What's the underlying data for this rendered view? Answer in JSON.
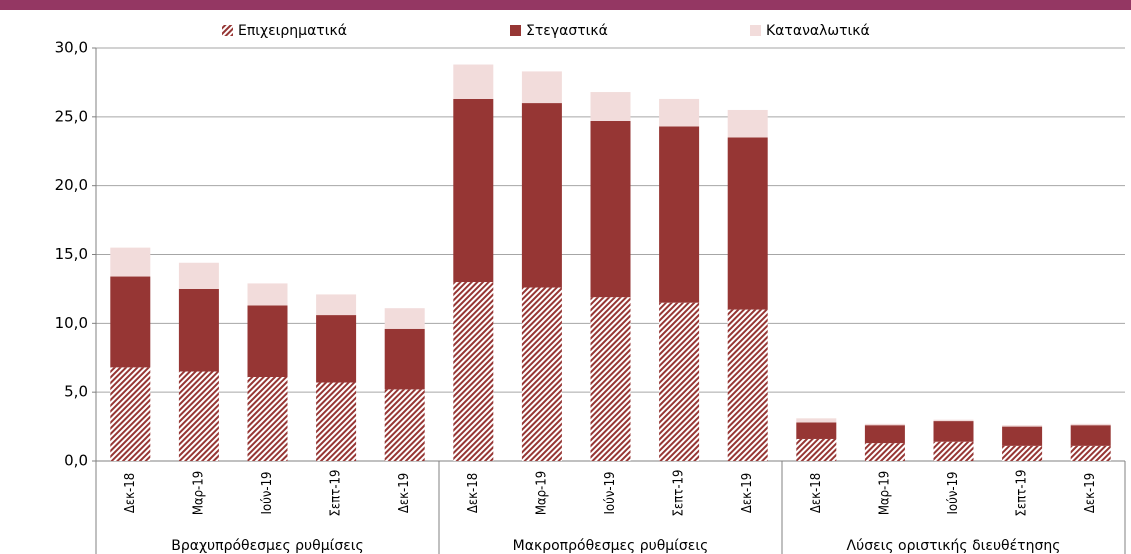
{
  "chart_data": {
    "type": "stacked_bar",
    "categories": [
      "Δεκ-18",
      "Μαρ-19",
      "Ιούν-19",
      "Σεπτ-19",
      "Δεκ-19",
      "Δεκ-18",
      "Μαρ-19",
      "Ιούν-19",
      "Σεπτ-19",
      "Δεκ-19",
      "Δεκ-18",
      "Μαρ-19",
      "Ιούν-19",
      "Σεπτ-19",
      "Δεκ-19"
    ],
    "groups": [
      "Βραχυπρόθεσμες ρυθμίσεις",
      "Μακροπρόθεσμες ρυθμίσεις",
      "Λύσεις οριστικής διευθέτησης"
    ],
    "series": [
      {
        "name": "Επιχειρηματικά",
        "color": "#963634",
        "pattern": "hatch",
        "values": [
          6.8,
          6.5,
          6.1,
          5.7,
          5.2,
          13.0,
          12.6,
          11.9,
          11.5,
          11.0,
          1.6,
          1.3,
          1.4,
          1.1,
          1.1
        ]
      },
      {
        "name": "Στεγαστικά",
        "color": "#963634",
        "values": [
          6.6,
          6.0,
          5.2,
          4.9,
          4.4,
          13.3,
          13.4,
          12.8,
          12.8,
          12.5,
          1.2,
          1.3,
          1.5,
          1.4,
          1.5
        ]
      },
      {
        "name": "Καταναλωτικά",
        "color": "#f2dcdb",
        "values": [
          2.1,
          1.9,
          1.6,
          1.5,
          1.5,
          2.5,
          2.3,
          2.1,
          2.0,
          2.0,
          0.3,
          0.1,
          0.1,
          0.1,
          0.1
        ]
      }
    ],
    "ylim": [
      0,
      30
    ],
    "yticks": [
      {
        "value": 0,
        "label": "0,0"
      },
      {
        "value": 5,
        "label": "5,0"
      },
      {
        "value": 10,
        "label": "10,0"
      },
      {
        "value": 15,
        "label": "15,0"
      },
      {
        "value": 20,
        "label": "20,0"
      },
      {
        "value": 25,
        "label": "25,0"
      },
      {
        "value": 30,
        "label": "30,0"
      }
    ],
    "grid": true
  }
}
